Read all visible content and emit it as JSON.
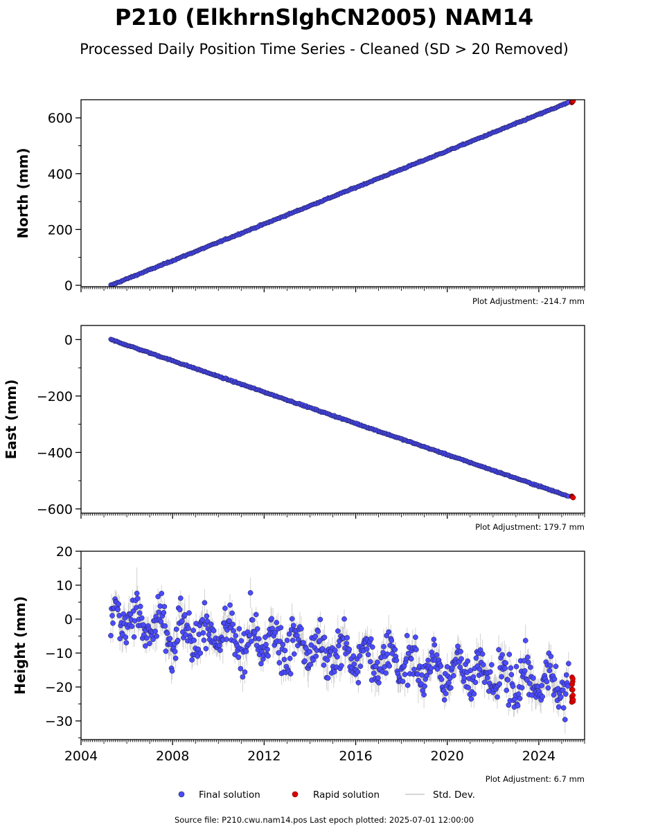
{
  "title": "P210 (ElkhrnSlghCN2005) NAM14",
  "subtitle": "Processed Daily Position Time Series - Cleaned (SD > 20 Removed)",
  "source_note": "Source file: P210.cwu.nam14.pos  Last epoch plotted: 2025-07-01 12:00:00",
  "legend": {
    "final": "Final solution",
    "rapid": "Rapid solution",
    "std": "Std. Dev."
  },
  "colors": {
    "final": "#4b4bff",
    "final_edge": "#1a1a3a",
    "rapid": "#e00000",
    "std": "#9a9a9a"
  },
  "chart_data": [
    {
      "type": "scatter",
      "ylabel": "North (mm)",
      "adjustment": "Plot Adjustment: -214.7 mm",
      "xlim": [
        2004.0,
        2026.0
      ],
      "ylim": [
        -5,
        665
      ],
      "yticks": [
        0,
        200,
        400,
        600
      ],
      "ytick_labels": [
        "0",
        "200",
        "400",
        "600"
      ],
      "series": [
        {
          "name": "Final solution",
          "x": [
            2005.3,
            2025.3
          ],
          "y": [
            0,
            655
          ],
          "trend": "linear",
          "scatter_sd": 2
        },
        {
          "name": "Rapid solution",
          "x": [
            2025.3,
            2025.5
          ],
          "y": [
            655,
            661
          ]
        }
      ]
    },
    {
      "type": "scatter",
      "ylabel": "East (mm)",
      "adjustment": "Plot Adjustment: 179.7 mm",
      "xlim": [
        2004.0,
        2026.0
      ],
      "ylim": [
        -615,
        50
      ],
      "yticks": [
        0,
        -200,
        -400,
        -600
      ],
      "ytick_labels": [
        "0",
        "−200",
        "−400",
        "−600"
      ],
      "series": [
        {
          "name": "Final solution",
          "x": [
            2005.3,
            2025.3
          ],
          "y": [
            0,
            -555
          ],
          "trend": "linear",
          "scatter_sd": 2
        },
        {
          "name": "Rapid solution",
          "x": [
            2025.3,
            2025.5
          ],
          "y": [
            -555,
            -560
          ]
        }
      ]
    },
    {
      "type": "scatter",
      "ylabel": "Height (mm)",
      "adjustment": "Plot Adjustment: 6.7 mm",
      "xlim": [
        2004.0,
        2026.0
      ],
      "ylim": [
        -35.5,
        20
      ],
      "yticks": [
        20,
        10,
        0,
        -10,
        -20,
        -30
      ],
      "ytick_labels": [
        "20",
        "10",
        "0",
        "−10",
        "−20",
        "−30"
      ],
      "xticks": [
        2004,
        2008,
        2012,
        2016,
        2020,
        2024
      ],
      "xtick_labels": [
        "2004",
        "2008",
        "2012",
        "2016",
        "2020",
        "2024"
      ],
      "series": [
        {
          "name": "Final solution",
          "x": [
            2005.3,
            2025.3
          ],
          "y": [
            0,
            -20
          ],
          "trend": "linear-with-seasonal",
          "scatter_sd": 5,
          "seasonal_amplitude": 4
        },
        {
          "name": "Rapid solution",
          "x": [
            2025.3,
            2025.5
          ],
          "y": [
            -25,
            -17
          ]
        }
      ]
    }
  ]
}
